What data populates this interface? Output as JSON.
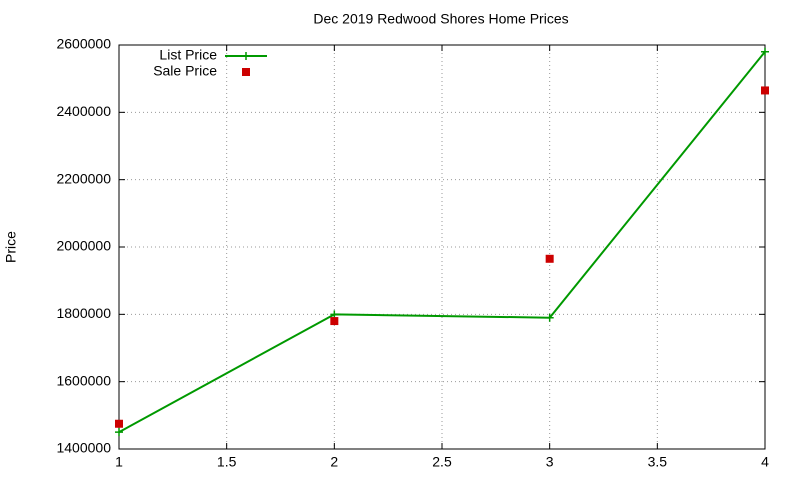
{
  "chart_data": {
    "type": "line",
    "title": "Dec 2019 Redwood Shores Home Prices",
    "y_label": "Price",
    "x": [
      1,
      2,
      3,
      4
    ],
    "series": [
      {
        "name": "List Price",
        "color": "#009900",
        "style": "linespoints",
        "values": [
          1450000,
          1800000,
          1790000,
          2580000
        ]
      },
      {
        "name": "Sale Price",
        "color": "#cc0000",
        "style": "points",
        "values": [
          1475000,
          1780000,
          1965000,
          2465000
        ]
      }
    ],
    "xlim": [
      1,
      4
    ],
    "xticks": [
      1,
      1.5,
      2,
      2.5,
      3,
      3.5,
      4
    ],
    "ylim": [
      1400000,
      2600000
    ],
    "yticks": [
      1400000,
      1600000,
      1800000,
      2000000,
      2200000,
      2400000,
      2600000
    ],
    "grid": true,
    "legend": "top-left"
  }
}
